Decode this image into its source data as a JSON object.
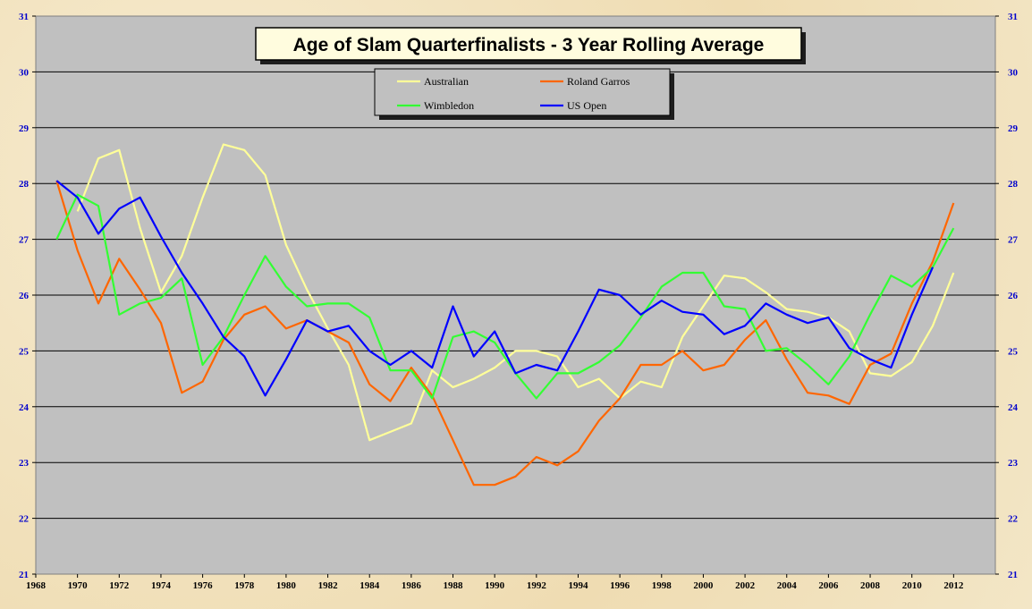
{
  "chart_data": {
    "type": "line",
    "title": "Age of Slam Quarterfinalists - 3 Year Rolling Average",
    "xlim": [
      1968,
      2014
    ],
    "ylim": [
      21,
      31
    ],
    "x_ticks": [
      1968,
      1970,
      1972,
      1974,
      1976,
      1978,
      1980,
      1982,
      1984,
      1986,
      1988,
      1990,
      1992,
      1994,
      1996,
      1998,
      2000,
      2002,
      2004,
      2006,
      2008,
      2010,
      2012
    ],
    "y_ticks": [
      21,
      22,
      23,
      24,
      25,
      26,
      27,
      28,
      29,
      30,
      31
    ],
    "grid": "horizontal",
    "legend_position": "top-center",
    "plot_background": "#c0c0c0",
    "series": [
      {
        "name": "Australian",
        "color": "#ffff99",
        "x": [
          1970,
          1971,
          1972,
          1973,
          1974,
          1975,
          1976,
          1977,
          1978,
          1979,
          1980,
          1981,
          1982,
          1983,
          1984,
          1985,
          1986,
          1987,
          1988,
          1989,
          1990,
          1991,
          1992,
          1993,
          1994,
          1995,
          1996,
          1997,
          1998,
          1999,
          2000,
          2001,
          2002,
          2003,
          2004,
          2005,
          2006,
          2007,
          2008,
          2009,
          2010,
          2011,
          2012
        ],
        "values": [
          27.5,
          28.45,
          28.6,
          27.2,
          26.05,
          26.7,
          27.75,
          28.7,
          28.6,
          28.15,
          26.9,
          26.1,
          25.4,
          24.75,
          23.4,
          23.55,
          23.7,
          24.65,
          24.35,
          24.5,
          24.7,
          25.0,
          25.0,
          24.9,
          24.35,
          24.5,
          24.15,
          24.45,
          24.35,
          25.25,
          25.8,
          26.35,
          26.3,
          26.05,
          25.75,
          25.7,
          25.6,
          25.35,
          24.6,
          24.55,
          24.8,
          25.45,
          26.4
        ]
      },
      {
        "name": "Roland Garros",
        "color": "#ff6600",
        "x": [
          1969,
          1970,
          1971,
          1972,
          1973,
          1974,
          1975,
          1976,
          1977,
          1978,
          1979,
          1980,
          1981,
          1982,
          1983,
          1984,
          1985,
          1986,
          1987,
          1988,
          1989,
          1990,
          1991,
          1992,
          1993,
          1994,
          1995,
          1996,
          1997,
          1998,
          1999,
          2000,
          2001,
          2002,
          2003,
          2004,
          2005,
          2006,
          2007,
          2008,
          2009,
          2010,
          2011,
          2012
        ],
        "values": [
          28.05,
          26.8,
          25.85,
          26.65,
          26.1,
          25.5,
          24.25,
          24.45,
          25.2,
          25.65,
          25.8,
          25.4,
          25.55,
          25.35,
          25.15,
          24.4,
          24.1,
          24.7,
          24.2,
          23.4,
          22.6,
          22.6,
          22.75,
          23.1,
          22.95,
          23.2,
          23.75,
          24.15,
          24.75,
          24.75,
          25.0,
          24.65,
          24.75,
          25.2,
          25.55,
          24.85,
          24.25,
          24.2,
          24.05,
          24.75,
          24.95,
          25.85,
          26.6,
          27.65
        ]
      },
      {
        "name": "Wimbledon",
        "color": "#33ff33",
        "x": [
          1969,
          1970,
          1971,
          1972,
          1973,
          1974,
          1975,
          1976,
          1977,
          1978,
          1979,
          1980,
          1981,
          1982,
          1983,
          1984,
          1985,
          1986,
          1987,
          1988,
          1989,
          1990,
          1991,
          1992,
          1993,
          1994,
          1995,
          1996,
          1997,
          1998,
          1999,
          2000,
          2001,
          2002,
          2003,
          2004,
          2005,
          2006,
          2007,
          2008,
          2009,
          2010,
          2011,
          2012
        ],
        "values": [
          27.0,
          27.8,
          27.6,
          25.65,
          25.85,
          25.95,
          26.3,
          24.75,
          25.25,
          26.0,
          26.7,
          26.15,
          25.8,
          25.85,
          25.85,
          25.6,
          24.65,
          24.65,
          24.15,
          25.25,
          25.35,
          25.15,
          24.6,
          24.15,
          24.6,
          24.6,
          24.8,
          25.1,
          25.6,
          26.15,
          26.4,
          26.4,
          25.8,
          25.75,
          25.0,
          25.05,
          24.75,
          24.4,
          24.9,
          25.65,
          26.35,
          26.15,
          26.5,
          27.2
        ]
      },
      {
        "name": "US Open",
        "color": "#0000ff",
        "x": [
          1969,
          1970,
          1971,
          1972,
          1973,
          1974,
          1975,
          1976,
          1977,
          1978,
          1979,
          1980,
          1981,
          1982,
          1983,
          1984,
          1985,
          1986,
          1987,
          1988,
          1989,
          1990,
          1991,
          1992,
          1993,
          1994,
          1995,
          1996,
          1997,
          1998,
          1999,
          2000,
          2001,
          2002,
          2003,
          2004,
          2005,
          2006,
          2007,
          2008,
          2009,
          2010,
          2011
        ],
        "values": [
          28.05,
          27.75,
          27.1,
          27.55,
          27.75,
          27.05,
          26.4,
          25.85,
          25.25,
          24.9,
          24.2,
          24.85,
          25.55,
          25.35,
          25.45,
          25.0,
          24.75,
          25.0,
          24.7,
          25.8,
          24.9,
          25.35,
          24.6,
          24.75,
          24.65,
          25.35,
          26.1,
          26.0,
          25.65,
          25.9,
          25.7,
          25.65,
          25.3,
          25.45,
          25.85,
          25.65,
          25.5,
          25.6,
          25.05,
          24.85,
          24.7,
          25.65,
          26.5
        ]
      }
    ]
  }
}
